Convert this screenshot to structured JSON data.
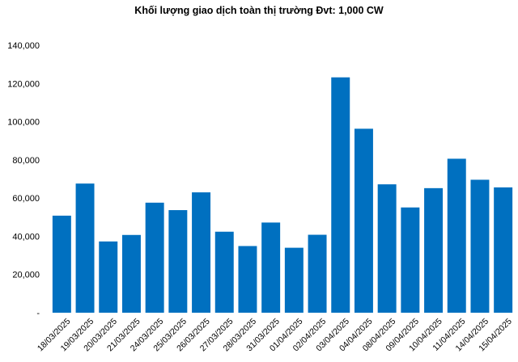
{
  "chart_data": {
    "type": "bar",
    "title": "Khối lượng giao dịch toàn thị trường Đvt: 1,000 CW",
    "xlabel": "",
    "ylabel": "",
    "ylim": [
      0,
      140000
    ],
    "y_ticks": [
      "-",
      "20,000",
      "40,000",
      "60,000",
      "80,000",
      "100,000",
      "120,000",
      "140,000"
    ],
    "grid": false,
    "color": "#0070c0",
    "categories": [
      "18/03/2025",
      "19/03/2025",
      "20/03/2025",
      "21/03/2025",
      "24/03/2025",
      "25/03/2025",
      "26/03/2025",
      "27/03/2025",
      "28/03/2025",
      "31/03/2025",
      "01/04/2025",
      "02/04/2025",
      "03/04/2025",
      "04/04/2025",
      "08/04/2025",
      "09/04/2025",
      "10/04/2025",
      "11/04/2025",
      "14/04/2025",
      "15/04/2025"
    ],
    "values": [
      50800,
      67600,
      37300,
      40700,
      57600,
      53700,
      63000,
      42400,
      34900,
      47200,
      34000,
      40800,
      123200,
      96300,
      67200,
      55100,
      65200,
      80600,
      69600,
      65600
    ]
  }
}
